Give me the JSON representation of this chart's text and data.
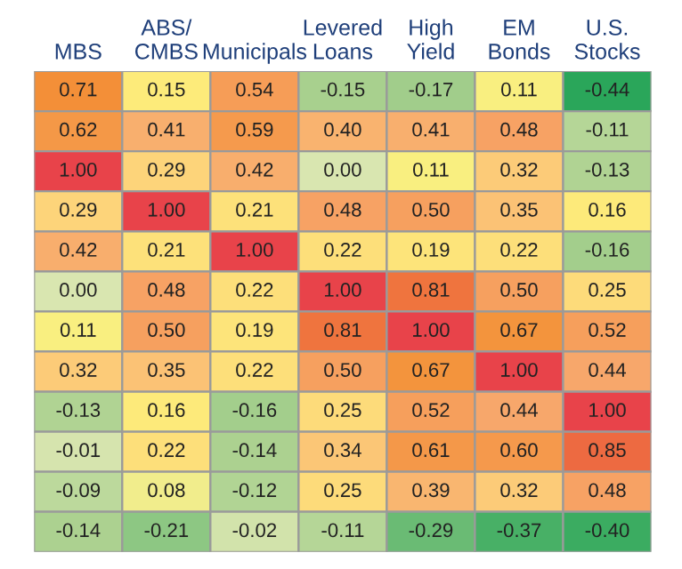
{
  "chart_data": {
    "type": "heatmap",
    "categories": [
      "MBS",
      "ABS/\nCMBS",
      "Municipals",
      "Levered\nLoans",
      "High\nYield",
      "EM\nBonds",
      "U.S.\nStocks"
    ],
    "y_categories": [
      null,
      null,
      null,
      null,
      null,
      null,
      null,
      null,
      null,
      null,
      null,
      null
    ],
    "cells": [
      [
        0.71,
        0.15,
        0.54,
        -0.15,
        -0.17,
        0.11,
        -0.44
      ],
      [
        0.62,
        0.41,
        0.59,
        0.4,
        0.41,
        0.48,
        -0.11
      ],
      [
        1.0,
        0.29,
        0.42,
        0.0,
        0.11,
        0.32,
        -0.13
      ],
      [
        0.29,
        1.0,
        0.21,
        0.48,
        0.5,
        0.35,
        0.16
      ],
      [
        0.42,
        0.21,
        1.0,
        0.22,
        0.19,
        0.22,
        -0.16
      ],
      [
        0.0,
        0.48,
        0.22,
        1.0,
        0.81,
        0.5,
        0.25
      ],
      [
        0.11,
        0.5,
        0.19,
        0.81,
        1.0,
        0.67,
        0.52
      ],
      [
        0.32,
        0.35,
        0.22,
        0.5,
        0.67,
        1.0,
        0.44
      ],
      [
        -0.13,
        0.16,
        -0.16,
        0.25,
        0.52,
        0.44,
        1.0
      ],
      [
        -0.01,
        0.22,
        -0.14,
        0.34,
        0.61,
        0.6,
        0.85
      ],
      [
        -0.09,
        0.08,
        -0.12,
        0.25,
        0.39,
        0.32,
        0.48
      ],
      [
        -0.14,
        -0.21,
        -0.02,
        -0.11,
        -0.29,
        -0.37,
        -0.4
      ]
    ],
    "cell_labels": [
      [
        "0.71",
        "0.15",
        "0.54",
        "-0.15",
        "-0.17",
        "0.11",
        "-0.44"
      ],
      [
        "0.62",
        "0.41",
        "0.59",
        "0.40",
        "0.41",
        "0.48",
        "-0.11"
      ],
      [
        "1.00",
        "0.29",
        "0.42",
        "0.00",
        "0.11",
        "0.32",
        "-0.13"
      ],
      [
        "0.29",
        "1.00",
        "0.21",
        "0.48",
        "0.50",
        "0.35",
        "0.16"
      ],
      [
        "0.42",
        "0.21",
        "1.00",
        "0.22",
        "0.19",
        "0.22",
        "-0.16"
      ],
      [
        "0.00",
        "0.48",
        "0.22",
        "1.00",
        "0.81",
        "0.50",
        "0.25"
      ],
      [
        "0.11",
        "0.50",
        "0.19",
        "0.81",
        "1.00",
        "0.67",
        "0.52"
      ],
      [
        "0.32",
        "0.35",
        "0.22",
        "0.50",
        "0.67",
        "1.00",
        "0.44"
      ],
      [
        "-0.13",
        "0.16",
        "-0.16",
        "0.25",
        "0.52",
        "0.44",
        "1.00"
      ],
      [
        "-0.01",
        "0.22",
        "-0.14",
        "0.34",
        "0.61",
        "0.60",
        "0.85"
      ],
      [
        "-0.09",
        "0.08",
        "-0.12",
        "0.25",
        "0.39",
        "0.32",
        "0.48"
      ],
      [
        "-0.14",
        "-0.21",
        "-0.02",
        "-0.11",
        "-0.29",
        "-0.37",
        "-0.40"
      ]
    ]
  }
}
